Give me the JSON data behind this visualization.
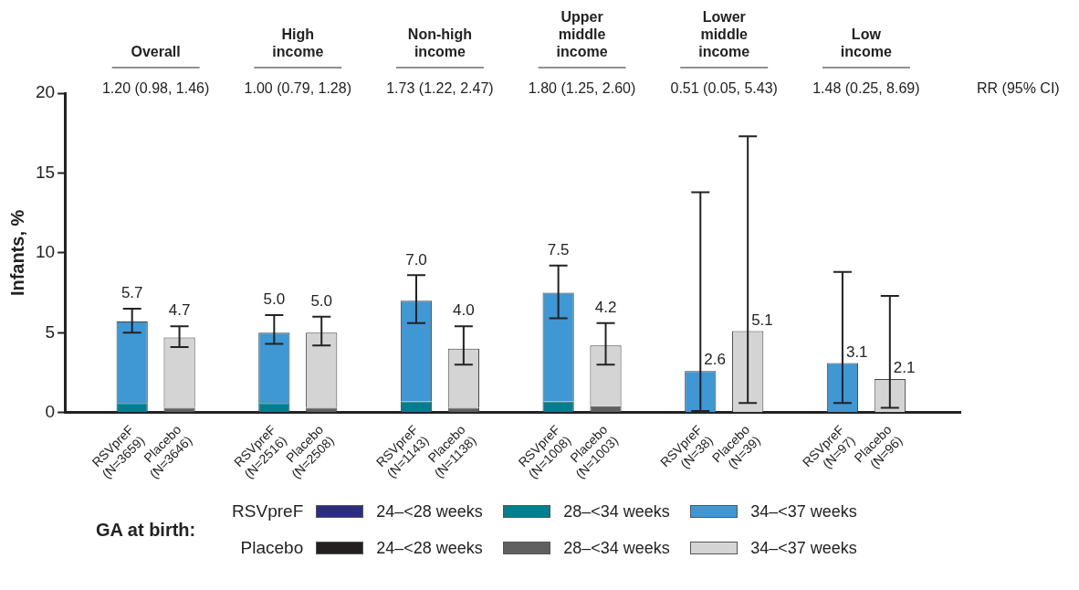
{
  "chart_data": {
    "type": "bar",
    "stacked": true,
    "ylabel": "Infants, %",
    "legend_title": "GA at birth:",
    "legend": "bottom",
    "grid": false,
    "categories": [
      "RSVpreF\n(N=3659)",
      "Placebo\n(N=3646)",
      "RSVpreF\n(N=2516)",
      "Placebo\n(N=2508)",
      "RSVpreF\n(N=1143)",
      "Placebo\n(N=1138)",
      "RSVpreF\n(N=1008)",
      "Placebo\n(N=1003)",
      "RSVpreF\n(N=38)",
      "Placebo\n(N=39)",
      "RSVpreF\n(N=97)",
      "Placebo\n(N=96)"
    ],
    "ylim": [
      0,
      20
    ],
    "yticks": [
      0,
      5,
      10,
      15,
      20
    ],
    "series": [
      {
        "name": "24–<28 weeks",
        "color": "#2b2e7e",
        "values": [
          0,
          null,
          0,
          null,
          0,
          null,
          0,
          null,
          0,
          null,
          0,
          null
        ]
      },
      {
        "name": "28–<34 weeks",
        "color": "#007f91",
        "values": [
          0.6,
          null,
          0.6,
          null,
          0.7,
          null,
          0.7,
          null,
          0,
          null,
          0,
          null
        ]
      },
      {
        "name": "34–<37 weeks",
        "color": "#3f97d4",
        "values": [
          5.1,
          null,
          4.4,
          null,
          6.3,
          null,
          6.8,
          null,
          2.6,
          null,
          3.1,
          null
        ],
        "errors": [
          [
            5.0,
            6.5
          ],
          null,
          [
            4.3,
            6.1
          ],
          null,
          [
            5.6,
            8.6
          ],
          null,
          [
            5.9,
            9.2
          ],
          null,
          [
            0.1,
            13.8
          ],
          null,
          [
            0.6,
            8.8
          ],
          null
        ]
      },
      {
        "name": "24–<28 weeks",
        "color": "#231f20",
        "values": [
          null,
          0,
          null,
          0,
          null,
          0,
          null,
          0,
          null,
          0,
          null,
          0
        ]
      },
      {
        "name": "28–<34 weeks",
        "color": "#606060",
        "values": [
          null,
          0.3,
          null,
          0.3,
          null,
          0.3,
          null,
          0.4,
          null,
          0,
          null,
          0
        ]
      },
      {
        "name": "34–<37 weeks",
        "color": "#d4d4d4",
        "values": [
          null,
          4.4,
          null,
          4.7,
          null,
          3.7,
          null,
          3.8,
          null,
          5.1,
          null,
          2.1
        ],
        "errors": [
          null,
          [
            4.1,
            5.4
          ],
          null,
          [
            4.2,
            6.0
          ],
          null,
          [
            3.0,
            5.4
          ],
          null,
          [
            3.0,
            5.6
          ],
          null,
          [
            0.6,
            17.3
          ],
          null,
          [
            0.3,
            7.3
          ]
        ]
      }
    ],
    "totals": [
      "5.7",
      "4.7",
      "5.0",
      "5.0",
      "7.0",
      "4.0",
      "7.5",
      "4.2",
      "2.6",
      "5.1",
      "3.1",
      "2.1"
    ],
    "annotations": [
      "Overall",
      "High\nincome",
      "Non-high\nincome",
      "Upper\nmiddle\nincome",
      "Lower\nmiddle\nincome",
      "Low\nincome",
      "1.20 (0.98, 1.46)",
      "1.00 (0.79, 1.28)",
      "1.73 (1.22, 2.47)",
      "1.80 (1.25, 2.60)",
      "0.51 (0.05, 5.43)",
      "1.48 (0.25, 8.69)",
      "RR (95% CI)",
      "RSVpreF",
      "Placebo"
    ]
  }
}
